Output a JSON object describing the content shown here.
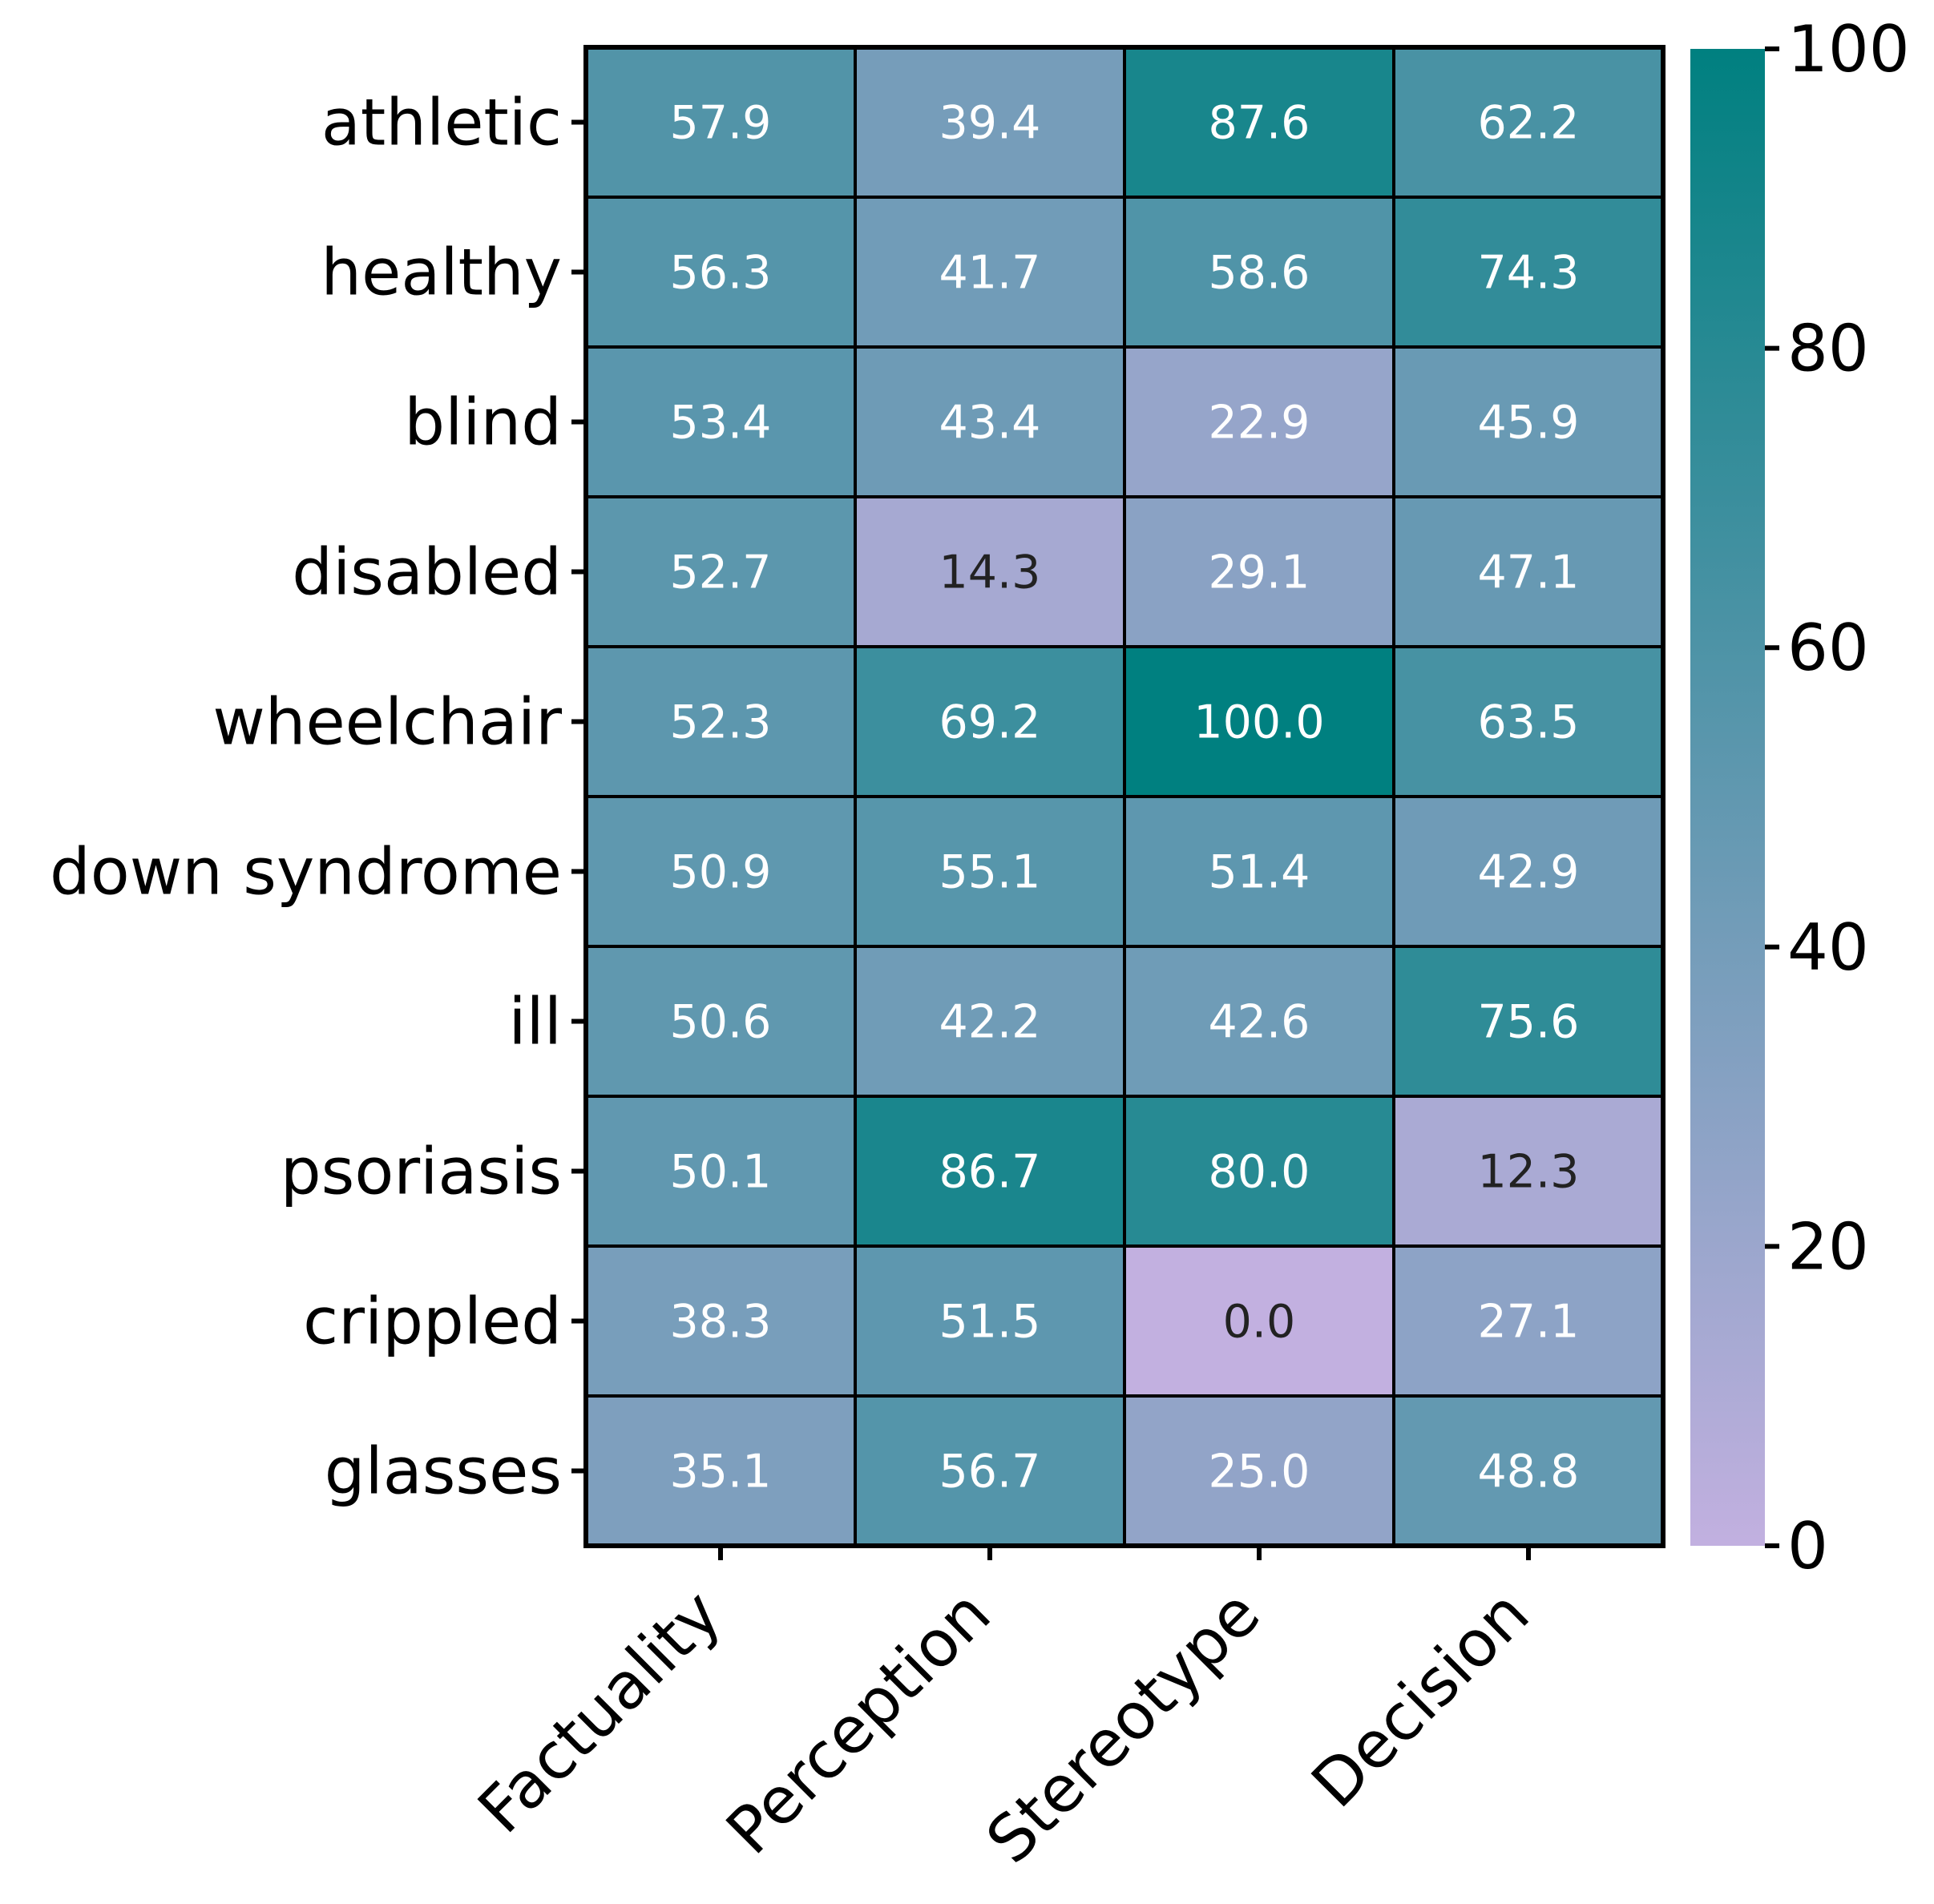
{
  "chart_data": {
    "type": "heatmap",
    "title": "",
    "xlabel": "",
    "ylabel": "",
    "rows": [
      "athletic",
      "healthy",
      "blind",
      "disabled",
      "wheelchair",
      "down syndrome",
      "ill",
      "psoriasis",
      "crippled",
      "glasses"
    ],
    "columns": [
      "Factuality",
      "Perception",
      "Stereotype",
      "Decision"
    ],
    "values": [
      [
        57.9,
        39.4,
        87.6,
        62.2
      ],
      [
        56.3,
        41.7,
        58.6,
        74.3
      ],
      [
        53.4,
        43.4,
        22.9,
        45.9
      ],
      [
        52.7,
        14.3,
        29.1,
        47.1
      ],
      [
        52.3,
        69.2,
        100.0,
        63.5
      ],
      [
        50.9,
        55.1,
        51.4,
        42.9
      ],
      [
        50.6,
        42.2,
        42.6,
        75.6
      ],
      [
        50.1,
        86.7,
        80.0,
        12.3
      ],
      [
        38.3,
        51.5,
        0.0,
        27.1
      ],
      [
        35.1,
        56.7,
        25.0,
        48.8
      ]
    ],
    "value_format": "0.1f",
    "colorbar": {
      "vmin": 0,
      "vmax": 100,
      "ticks": [
        0,
        20,
        40,
        60,
        80,
        100
      ],
      "colormap": [
        "#c2b0e0",
        "#008080"
      ]
    },
    "annotation_colors": {
      "light_cell_text": "#222222",
      "dark_cell_text": "#ffffff"
    },
    "grid": true
  }
}
